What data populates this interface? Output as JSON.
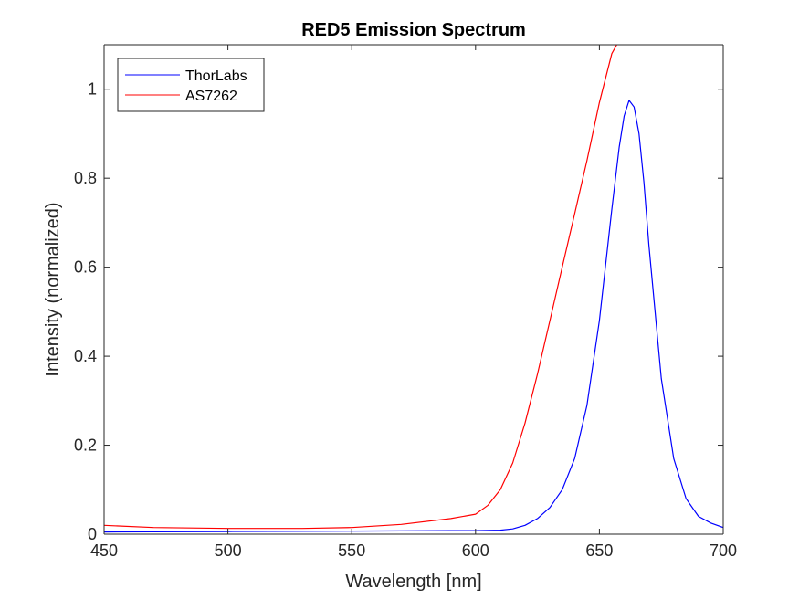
{
  "chart_data": {
    "type": "line",
    "title": "RED5 Emission Spectrum",
    "xlabel": "Wavelength [nm]",
    "ylabel": "Intensity (normalized)",
    "xlim": [
      450,
      700
    ],
    "ylim": [
      0,
      1.1
    ],
    "xticks": [
      "450",
      "500",
      "550",
      "600",
      "650",
      "700"
    ],
    "yticks": [
      "0",
      "0.2",
      "0.4",
      "0.6",
      "0.8",
      "1"
    ],
    "grid": false,
    "legend_position": "top-left",
    "series": [
      {
        "name": "ThorLabs",
        "color": "#0000ff",
        "x": [
          450,
          500,
          550,
          590,
          600,
          610,
          615,
          620,
          625,
          630,
          635,
          640,
          645,
          650,
          655,
          658,
          660,
          662,
          664,
          666,
          668,
          670,
          675,
          680,
          685,
          690,
          695,
          700
        ],
        "y": [
          0.005,
          0.006,
          0.007,
          0.008,
          0.008,
          0.009,
          0.012,
          0.02,
          0.035,
          0.06,
          0.1,
          0.17,
          0.29,
          0.48,
          0.73,
          0.87,
          0.94,
          0.975,
          0.96,
          0.9,
          0.79,
          0.65,
          0.35,
          0.17,
          0.08,
          0.04,
          0.025,
          0.015
        ]
      },
      {
        "name": "AS7262",
        "color": "#ff0000",
        "x": [
          450,
          470,
          500,
          530,
          550,
          570,
          590,
          600,
          605,
          610,
          615,
          620,
          625,
          630,
          635,
          640,
          645,
          650,
          655,
          657
        ],
        "y": [
          0.02,
          0.015,
          0.013,
          0.013,
          0.015,
          0.022,
          0.035,
          0.045,
          0.065,
          0.1,
          0.16,
          0.25,
          0.36,
          0.48,
          0.6,
          0.72,
          0.84,
          0.97,
          1.08,
          1.1
        ]
      }
    ]
  }
}
